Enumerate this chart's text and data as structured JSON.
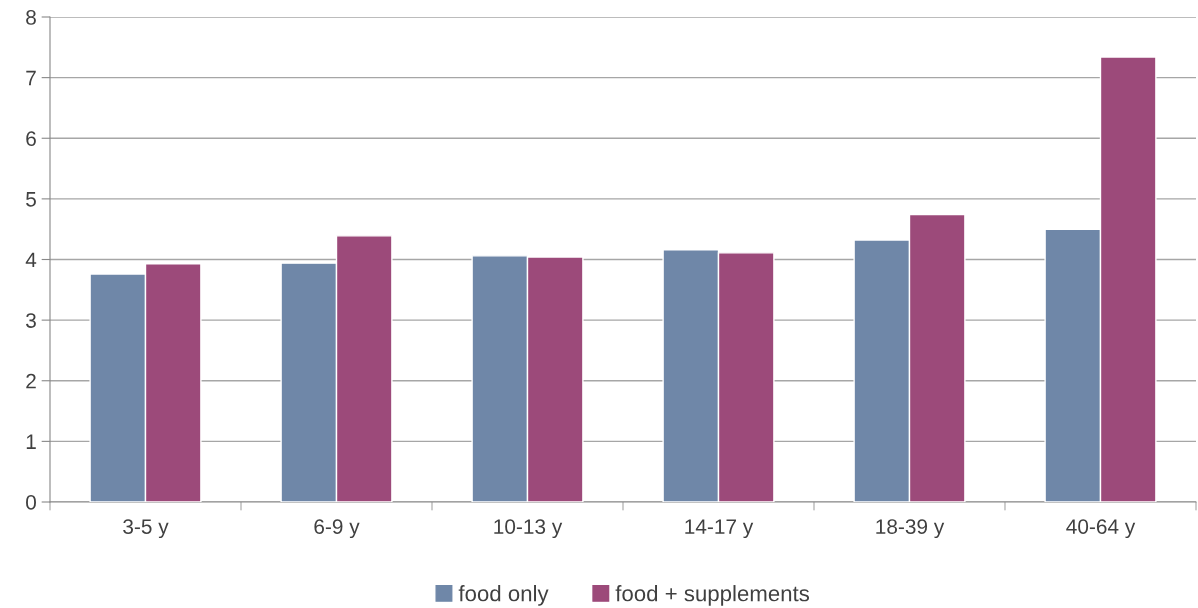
{
  "chart_data": {
    "type": "bar",
    "categories": [
      "3-5 y",
      "6-9 y",
      "10-13 y",
      "14-17 y",
      "18-39 y",
      "40-64 y"
    ],
    "series": [
      {
        "name": "food only",
        "color": "#6f87a8",
        "values": [
          3.76,
          3.94,
          4.06,
          4.16,
          4.32,
          4.5
        ]
      },
      {
        "name": "food + supplements",
        "color": "#9c4a7a",
        "values": [
          3.93,
          4.39,
          4.04,
          4.11,
          4.74,
          7.34
        ]
      }
    ],
    "ylim": [
      0,
      8
    ],
    "yticks": [
      0,
      1,
      2,
      3,
      4,
      5,
      6,
      7,
      8
    ],
    "grid": "y",
    "legend": "bottom"
  }
}
